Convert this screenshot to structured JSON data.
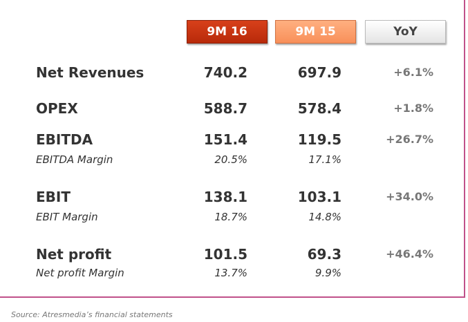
{
  "headers": [
    "9M 16",
    "9M 15",
    "YoY"
  ],
  "rows": [
    {
      "label": "Net Revenues",
      "v1": "740.2",
      "v2": "697.9",
      "yoy": "+6.1%"
    },
    {
      "label": "OPEX",
      "v1": "588.7",
      "v2": "578.4",
      "yoy": "+1.8%"
    },
    {
      "label": "EBITDA",
      "v1": "151.4",
      "v2": "119.5",
      "yoy": "+26.7%",
      "margin_label": "EBITDA Margin",
      "m1": "20.5%",
      "m2": "17.1%"
    },
    {
      "label": "EBIT",
      "v1": "138.1",
      "v2": "103.1",
      "yoy": "+34.0%",
      "margin_label": "EBIT Margin",
      "m1": "18.7%",
      "m2": "14.8%"
    },
    {
      "label": "Net profit",
      "v1": "101.5",
      "v2": "69.3",
      "yoy": "+46.4%",
      "margin_label": "Net profit Margin",
      "m1": "13.7%",
      "m2": "9.9%"
    }
  ],
  "source": "Source: Atresmedia’s financial statements"
}
